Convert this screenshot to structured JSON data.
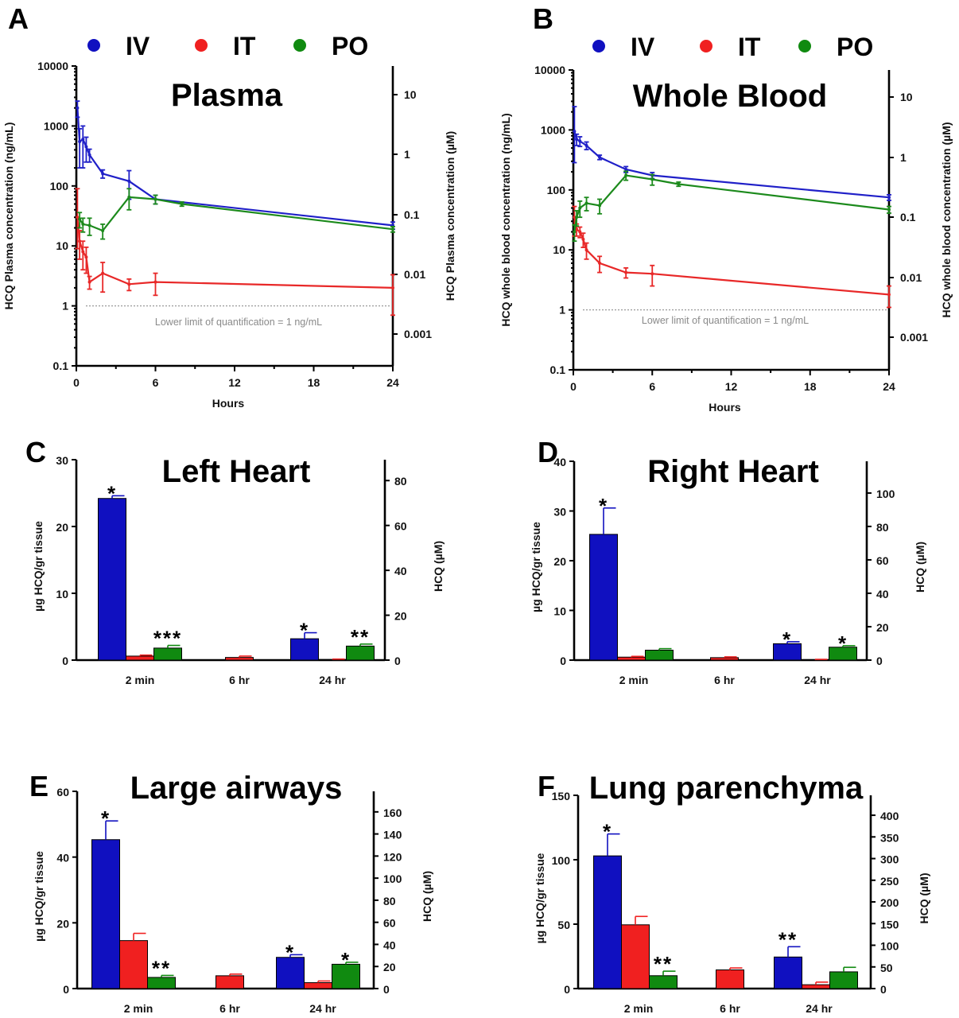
{
  "colors": {
    "IV": "#1010c0",
    "IT": "#f02020",
    "PO": "#108a10",
    "IV_line": "#2020c8",
    "IT_line": "#e82828",
    "PO_line": "#1c8a1c"
  },
  "legend": [
    {
      "label": "IV",
      "color": "#1010c0"
    },
    {
      "label": "IT",
      "color": "#f02020"
    },
    {
      "label": "PO",
      "color": "#108a10"
    }
  ],
  "chart_data": [
    {
      "panel": "A",
      "type": "line",
      "title": "Plasma",
      "xlabel": "Hours",
      "ylabel": "HCQ Plasma concentration (ng/mL)",
      "ylabel_right": "HCQ Plasma concentration (µM)",
      "yscale": "log",
      "xlim": [
        0,
        24
      ],
      "ylim": [
        0.1,
        10000
      ],
      "x_ticks": [
        "0",
        "6",
        "12",
        "18",
        "24"
      ],
      "y_ticks": [
        "0.1",
        "1",
        "10",
        "100",
        "1000",
        "10000"
      ],
      "y_right_ticks": [
        "0.001",
        "0.01",
        "0.1",
        "1",
        "10"
      ],
      "annotation": "Lower limit of quantification = 1 ng/mL",
      "lloq": 1,
      "series": [
        {
          "name": "IV",
          "x": [
            0.083,
            0.25,
            0.5,
            0.75,
            1,
            2,
            4,
            6,
            24
          ],
          "y": [
            2000,
            550,
            600,
            450,
            330,
            160,
            120,
            60,
            22
          ],
          "err": [
            600,
            350,
            400,
            200,
            80,
            25,
            60,
            10,
            3
          ]
        },
        {
          "name": "IT",
          "x": [
            0.083,
            0.25,
            0.5,
            0.75,
            1,
            2,
            4,
            6,
            24
          ],
          "y": [
            30,
            12,
            8,
            6.5,
            2.5,
            3.5,
            2.3,
            2.5,
            2
          ],
          "err": [
            60,
            6,
            4,
            3,
            0.6,
            1.8,
            0.5,
            1,
            1.3
          ]
        },
        {
          "name": "PO",
          "x": [
            0.25,
            0.5,
            1,
            2,
            4,
            6,
            8,
            24
          ],
          "y": [
            28,
            23,
            22,
            18,
            65,
            60,
            50,
            19
          ],
          "err": [
            8,
            6,
            7,
            5,
            25,
            10,
            4,
            2
          ]
        }
      ]
    },
    {
      "panel": "B",
      "type": "line",
      "title": "Whole Blood",
      "xlabel": "Hours",
      "ylabel": "HCQ whole blood concentration (ng/mL)",
      "ylabel_right": "HCQ whole blood concentration (µM)",
      "yscale": "log",
      "xlim": [
        0,
        24
      ],
      "ylim": [
        0.1,
        10000
      ],
      "x_ticks": [
        "0",
        "6",
        "12",
        "18",
        "24"
      ],
      "y_ticks": [
        "0.1",
        "1",
        "10",
        "100",
        "1000",
        "10000"
      ],
      "y_right_ticks": [
        "0.001",
        "0.01",
        "0.1",
        "1",
        "10"
      ],
      "annotation": "Lower limit of quantification = 1 ng/mL",
      "lloq": 1,
      "series": [
        {
          "name": "IV",
          "x": [
            0.083,
            0.25,
            0.5,
            1,
            2,
            4,
            6,
            24
          ],
          "y": [
            950,
            700,
            650,
            550,
            350,
            220,
            175,
            75
          ],
          "err": [
            1500,
            150,
            120,
            80,
            30,
            25,
            20,
            8
          ]
        },
        {
          "name": "IT",
          "x": [
            0.083,
            0.25,
            0.5,
            0.75,
            1,
            2,
            4,
            6,
            24
          ],
          "y": [
            35,
            22,
            20,
            15,
            10,
            6,
            4.2,
            4,
            1.8
          ],
          "err": [
            18,
            5,
            4,
            4,
            3,
            1.8,
            0.8,
            1.5,
            0.7
          ]
        },
        {
          "name": "PO",
          "x": [
            0.083,
            0.25,
            0.5,
            1,
            2,
            4,
            6,
            8,
            24
          ],
          "y": [
            20,
            35,
            50,
            60,
            55,
            175,
            150,
            125,
            47
          ],
          "err": [
            6,
            10,
            15,
            15,
            15,
            30,
            30,
            10,
            6
          ]
        }
      ]
    },
    {
      "panel": "C",
      "type": "bar",
      "title": "Left Heart",
      "ylabel": "µg HCQ/gr tissue",
      "ylabel_right": "HCQ (µM)",
      "categories": [
        "2 min",
        "6 hr",
        "24 hr"
      ],
      "ylim": [
        0,
        30
      ],
      "y_ticks": [
        "0",
        "10",
        "20",
        "30"
      ],
      "y_right_ticks": [
        "0",
        "20",
        "40",
        "60",
        "80"
      ],
      "right_max": 89.3,
      "series": [
        {
          "name": "IV",
          "values": [
            24.2,
            null,
            3.2
          ],
          "err": [
            0.4,
            null,
            0.9
          ],
          "sig": [
            "*",
            "",
            "*"
          ]
        },
        {
          "name": "IT",
          "values": [
            0.6,
            0.4,
            0.1
          ],
          "err": [
            0.15,
            0.2,
            0.05
          ],
          "sig": [
            "",
            "",
            ""
          ]
        },
        {
          "name": "PO",
          "values": [
            1.8,
            null,
            2.1
          ],
          "err": [
            0.4,
            null,
            0.3
          ],
          "sig": [
            "***",
            "",
            "**"
          ]
        }
      ]
    },
    {
      "panel": "D",
      "type": "bar",
      "title": "Right Heart",
      "ylabel": "µg HCQ/gr tissue",
      "ylabel_right": "HCQ (µM)",
      "categories": [
        "2 min",
        "6 hr",
        "24 hr"
      ],
      "ylim": [
        0,
        40
      ],
      "y_ticks": [
        "0",
        "10",
        "20",
        "30",
        "40"
      ],
      "y_right_ticks": [
        "0",
        "20",
        "40",
        "60",
        "80",
        "100"
      ],
      "right_max": 119,
      "series": [
        {
          "name": "IV",
          "values": [
            25.3,
            null,
            3.3
          ],
          "err": [
            5.3,
            null,
            0.4
          ],
          "sig": [
            "*",
            "",
            "*"
          ]
        },
        {
          "name": "IT",
          "values": [
            0.6,
            0.5,
            0.1
          ],
          "err": [
            0.15,
            0.15,
            0.05
          ],
          "sig": [
            "",
            "",
            ""
          ]
        },
        {
          "name": "PO",
          "values": [
            2.0,
            null,
            2.6
          ],
          "err": [
            0.3,
            null,
            0.3
          ],
          "sig": [
            "",
            "",
            "*"
          ]
        }
      ]
    },
    {
      "panel": "E",
      "type": "bar",
      "title": "Large airways",
      "ylabel": "µg HCQ/gr tissue",
      "ylabel_right": "HCQ (µM)",
      "categories": [
        "2 min",
        "6 hr",
        "24 hr"
      ],
      "ylim": [
        0,
        60
      ],
      "y_ticks": [
        "0",
        "20",
        "40",
        "60"
      ],
      "y_right_ticks": [
        "0",
        "20",
        "40",
        "60",
        "80",
        "100",
        "120",
        "140",
        "160"
      ],
      "right_max": 178.6,
      "series": [
        {
          "name": "IV",
          "values": [
            45.3,
            null,
            9.5
          ],
          "err": [
            5.7,
            null,
            0.8
          ],
          "sig": [
            "*",
            "",
            "*"
          ]
        },
        {
          "name": "IT",
          "values": [
            14.6,
            3.9,
            1.8
          ],
          "err": [
            2.2,
            0.5,
            0.5
          ],
          "sig": [
            "",
            "",
            ""
          ]
        },
        {
          "name": "PO",
          "values": [
            3.4,
            null,
            7.4
          ],
          "err": [
            0.6,
            null,
            0.6
          ],
          "sig": [
            "**",
            "",
            "*"
          ]
        }
      ]
    },
    {
      "panel": "F",
      "type": "bar",
      "title": "Lung parenchyma",
      "ylabel": "µg HCQ/gr tissue",
      "ylabel_right": "HCQ (µM)",
      "categories": [
        "2 min",
        "6 hr",
        "24 hr"
      ],
      "ylim": [
        0,
        150
      ],
      "y_ticks": [
        "0",
        "50",
        "100",
        "150"
      ],
      "y_right_ticks": [
        "0",
        "50",
        "100",
        "150",
        "200",
        "250",
        "300",
        "350",
        "400"
      ],
      "right_max": 446,
      "series": [
        {
          "name": "IV",
          "values": [
            103,
            null,
            24.5
          ],
          "err": [
            17,
            null,
            8
          ],
          "sig": [
            "*",
            "",
            "**"
          ]
        },
        {
          "name": "IT",
          "values": [
            49.5,
            14.5,
            3
          ],
          "err": [
            6.5,
            1.5,
            2
          ],
          "sig": [
            "",
            "",
            ""
          ]
        },
        {
          "name": "PO",
          "values": [
            10,
            null,
            13
          ],
          "err": [
            3.5,
            null,
            3.5
          ],
          "sig": [
            "**",
            "",
            ""
          ]
        }
      ]
    }
  ]
}
